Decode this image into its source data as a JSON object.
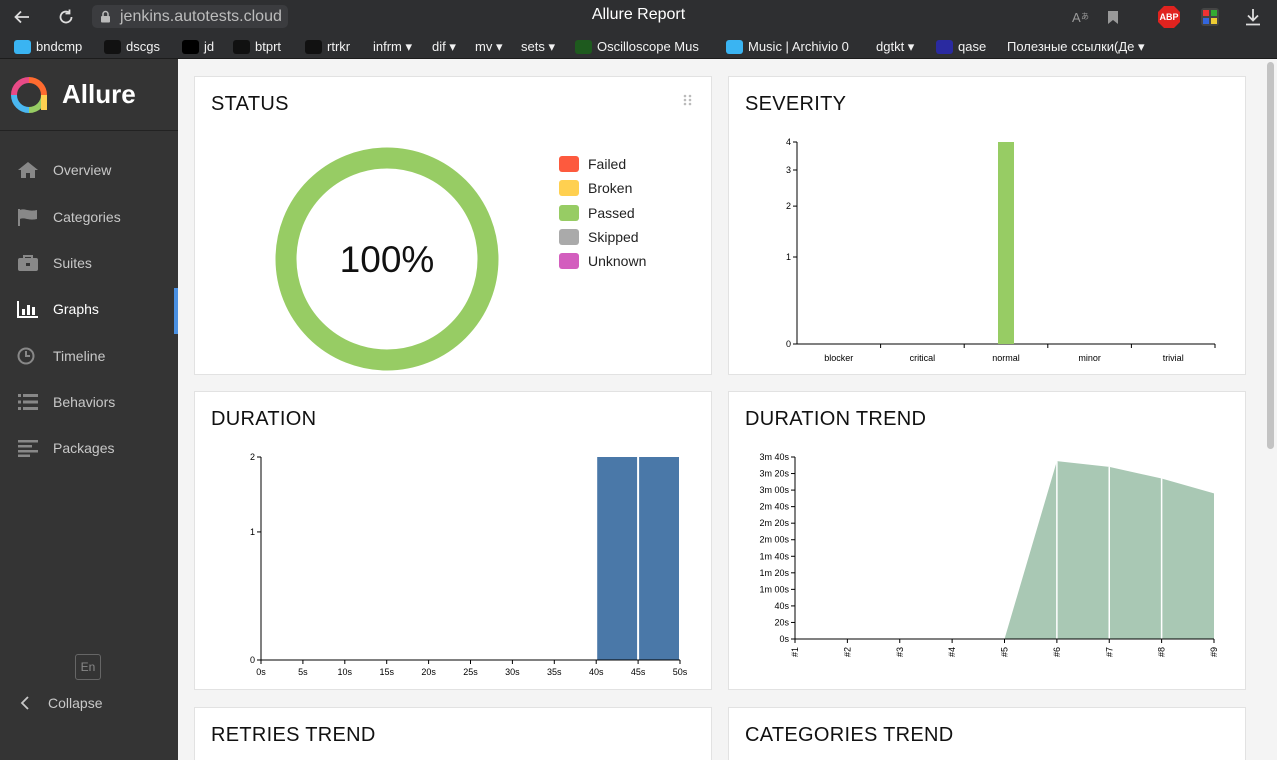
{
  "browser": {
    "url": "jenkins.autotests.cloud",
    "tab_title": "Allure Report",
    "abp_badge": "ABP"
  },
  "bookmarks": [
    {
      "label": "bndcmp",
      "color": "#3ab4f2"
    },
    {
      "label": "dscgs",
      "color": "#111111"
    },
    {
      "label": "jd",
      "color": "#000000"
    },
    {
      "label": "btprt",
      "color": "#111111"
    },
    {
      "label": "rtrkr",
      "color": "#111111"
    },
    {
      "label": "infrm ▾",
      "color": ""
    },
    {
      "label": "dif ▾",
      "color": ""
    },
    {
      "label": "mv ▾",
      "color": ""
    },
    {
      "label": "sets ▾",
      "color": ""
    },
    {
      "label": "Oscilloscope Mus",
      "color": "#1e5a1e"
    },
    {
      "label": "Music | Archivio 0",
      "color": "#3ab4f2"
    },
    {
      "label": "dgtkt ▾",
      "color": ""
    },
    {
      "label": "qase",
      "color": "#2a2aa0"
    },
    {
      "label": "Полезные ссылки(Де ▾",
      "color": ""
    }
  ],
  "sidebar": {
    "brand": "Allure",
    "items": [
      {
        "label": "Overview",
        "icon": "home-icon"
      },
      {
        "label": "Categories",
        "icon": "flag-icon"
      },
      {
        "label": "Suites",
        "icon": "briefcase-icon"
      },
      {
        "label": "Graphs",
        "icon": "bar-chart-icon",
        "active": true
      },
      {
        "label": "Timeline",
        "icon": "clock-icon"
      },
      {
        "label": "Behaviors",
        "icon": "list-icon"
      },
      {
        "label": "Packages",
        "icon": "align-left-icon"
      }
    ],
    "lang": "En",
    "collapse": "Collapse"
  },
  "cards": {
    "status": "STATUS",
    "severity": "SEVERITY",
    "duration": "DURATION",
    "duration_trend": "DURATION TREND",
    "retries_trend": "RETRIES TREND",
    "categories_trend": "CATEGORIES TREND"
  },
  "colors": {
    "failed": "#fd5a3e",
    "broken": "#ffd050",
    "passed": "#97cc64",
    "skipped": "#aaaaaa",
    "unknown": "#d35ebe",
    "duration_bar": "#4a78a8",
    "trend_area": "#a9c8b4",
    "active_accent": "#4a90e2"
  },
  "chart_data": [
    {
      "type": "pie",
      "title": "STATUS",
      "center_label": "100%",
      "categories": [
        "Failed",
        "Broken",
        "Passed",
        "Skipped",
        "Unknown"
      ],
      "values": [
        0,
        0,
        4,
        0,
        0
      ],
      "legend_placement": "right"
    },
    {
      "type": "bar",
      "title": "SEVERITY",
      "categories": [
        "blocker",
        "critical",
        "normal",
        "minor",
        "trivial"
      ],
      "values": [
        0,
        0,
        4,
        0,
        0
      ],
      "yticks": [
        "0",
        "1",
        "2",
        "3",
        "4"
      ],
      "ylim": [
        0,
        4
      ],
      "y_scale": "log"
    },
    {
      "type": "bar",
      "title": "DURATION",
      "xticks": [
        "0s",
        "5s",
        "10s",
        "15s",
        "20s",
        "25s",
        "30s",
        "35s",
        "40s",
        "45s",
        "50s"
      ],
      "bins": [
        {
          "from": 40,
          "to": 45,
          "value": 2
        },
        {
          "from": 45,
          "to": 50,
          "value": 2
        }
      ],
      "yticks": [
        "0",
        "1",
        "2"
      ],
      "xlim": [
        0,
        50
      ],
      "ylim": [
        0,
        2
      ],
      "y_scale": "log"
    },
    {
      "type": "area",
      "title": "DURATION TREND",
      "x": [
        "#1",
        "#2",
        "#3",
        "#4",
        "#5",
        "#6",
        "#7",
        "#8",
        "#9"
      ],
      "values_seconds": [
        0,
        0,
        0,
        0,
        0,
        215,
        208,
        194,
        176
      ],
      "yticks": [
        "0s",
        "20s",
        "40s",
        "1m 00s",
        "1m 20s",
        "1m 40s",
        "2m 00s",
        "2m 20s",
        "2m 40s",
        "3m 00s",
        "3m 20s",
        "3m 40s"
      ],
      "ylim": [
        0,
        220
      ]
    }
  ]
}
